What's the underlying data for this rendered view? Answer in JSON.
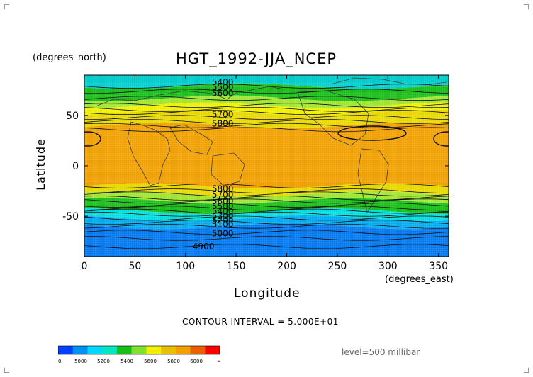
{
  "title": "HGT_1992-JJA_NCEP",
  "x_units": "(degrees_east)",
  "y_units": "(degrees_north)",
  "x_axis_title": "Longitude",
  "y_axis_title": "Latitude",
  "contour_interval_text": "CONTOUR INTERVAL = 5.000E+01",
  "level_text": "level=500 millibar",
  "map": {
    "variable": "geopotential height",
    "lon_range": [
      0,
      360
    ],
    "lat_range": [
      -90,
      90
    ],
    "x_ticks": [
      "0",
      "50",
      "100",
      "150",
      "200",
      "250",
      "300",
      "350"
    ],
    "x_tick_values": [
      0,
      50,
      100,
      150,
      200,
      250,
      300,
      350
    ],
    "y_ticks": [
      "50",
      "0",
      "-50"
    ],
    "y_tick_values": [
      50,
      0,
      -50
    ],
    "bands": [
      {
        "lat_top": 90,
        "lat_bot": 79,
        "color": "#00cccc"
      },
      {
        "lat_top": 79,
        "lat_bot": 67,
        "color": "#19be19"
      },
      {
        "lat_top": 67,
        "lat_bot": 60,
        "color": "#a0e632"
      },
      {
        "lat_top": 60,
        "lat_bot": 53,
        "color": "#f0f000"
      },
      {
        "lat_top": 53,
        "lat_bot": 40,
        "color": "#e8d800"
      },
      {
        "lat_top": 40,
        "lat_bot": -20,
        "color": "#f0a000"
      },
      {
        "lat_top": -20,
        "lat_bot": -28,
        "color": "#e8d800"
      },
      {
        "lat_top": -28,
        "lat_bot": -35,
        "color": "#a0e632"
      },
      {
        "lat_top": -35,
        "lat_bot": -45,
        "color": "#19be19"
      },
      {
        "lat_top": -45,
        "lat_bot": -52,
        "color": "#00dddd"
      },
      {
        "lat_top": -52,
        "lat_bot": -60,
        "color": "#00aaee"
      },
      {
        "lat_top": -60,
        "lat_bot": -90,
        "color": "#0077ee"
      }
    ],
    "contour_labels": [
      {
        "text": "5400",
        "lon": 126,
        "lat": 83
      },
      {
        "text": "5500",
        "lon": 126,
        "lat": 78
      },
      {
        "text": "5600",
        "lon": 126,
        "lat": 72
      },
      {
        "text": "5700",
        "lon": 126,
        "lat": 51
      },
      {
        "text": "5800",
        "lon": 126,
        "lat": 42
      },
      {
        "text": "5800",
        "lon": 126,
        "lat": -23
      },
      {
        "text": "5700",
        "lon": 126,
        "lat": -29
      },
      {
        "text": "5600",
        "lon": 126,
        "lat": -35
      },
      {
        "text": "5500",
        "lon": 126,
        "lat": -40
      },
      {
        "text": "5400",
        "lon": 126,
        "lat": -45
      },
      {
        "text": "5300",
        "lon": 126,
        "lat": -50
      },
      {
        "text": "5200",
        "lon": 126,
        "lat": -54
      },
      {
        "text": "5100",
        "lon": 126,
        "lat": -58
      },
      {
        "text": "5000",
        "lon": 126,
        "lat": -67
      },
      {
        "text": "4900",
        "lon": 107,
        "lat": -80
      }
    ],
    "contour_lats": [
      79,
      74,
      67,
      60,
      56,
      53,
      48,
      44,
      40,
      36,
      -20,
      -25,
      -28,
      -32,
      -35,
      -39,
      -42,
      -45,
      -48,
      -52,
      -56,
      -60,
      -66,
      -72,
      -80
    ]
  },
  "colorbar": {
    "labels": [
      "0",
      "5000",
      "5200",
      "5400",
      "5600",
      "5800",
      "6000",
      "∞"
    ],
    "colors": [
      "#0040ff",
      "#0090f0",
      "#00d8ff",
      "#00e8c0",
      "#19be19",
      "#80e030",
      "#f0f000",
      "#e8c000",
      "#f0a000",
      "#e86000",
      "#ff0000"
    ]
  }
}
